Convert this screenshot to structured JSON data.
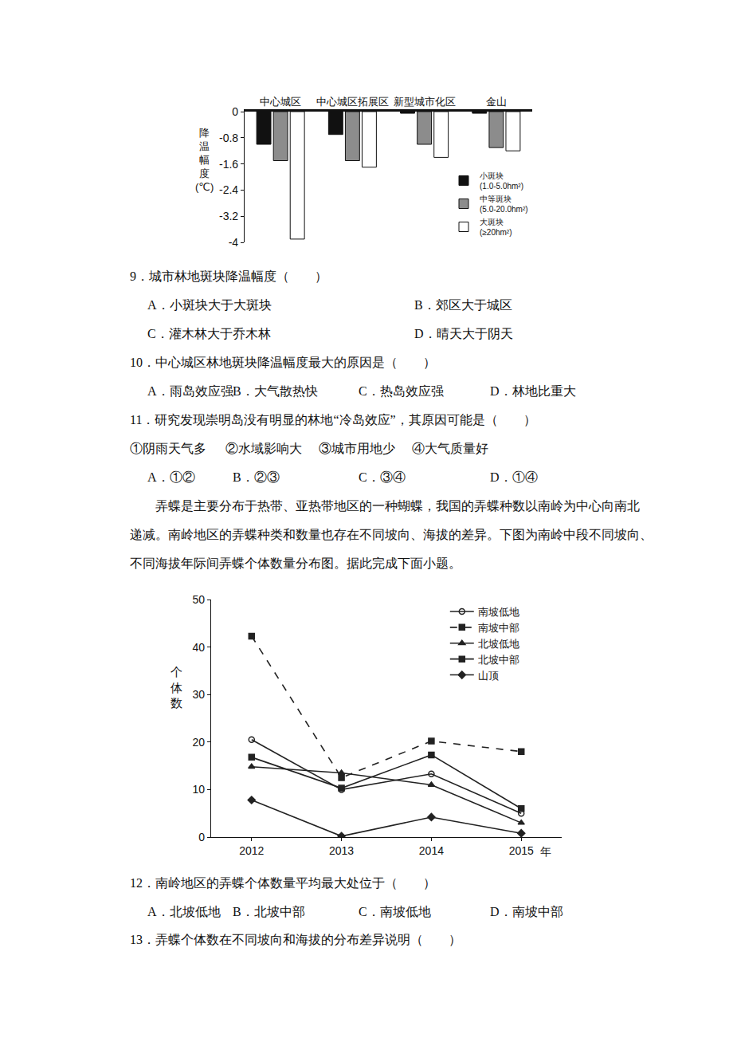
{
  "chart_data": [
    {
      "type": "bar",
      "categories": [
        "中心城区",
        "中心城区拓展区",
        "新型城市化区",
        "金山"
      ],
      "ylabel": "降温幅度(℃)",
      "ylim": [
        -4,
        0
      ],
      "yticks": [
        0,
        -0.8,
        -1.6,
        -2.4,
        -3.2,
        -4
      ],
      "grid": false,
      "legend": "lower right",
      "series": [
        {
          "name": "小斑块 (1.0-5.0hm²)",
          "color": "#111111",
          "values": [
            -1.0,
            -0.7,
            -0.05,
            -0.05
          ]
        },
        {
          "name": "中等斑块 (5.0-20.0hm²)",
          "color": "#8c8c8c",
          "values": [
            -1.5,
            -1.5,
            -1.0,
            -1.1
          ]
        },
        {
          "name": "大斑块 (≥20hm²)",
          "color": "#ffffff",
          "values": [
            -3.9,
            -1.7,
            -1.4,
            -1.2
          ]
        }
      ]
    },
    {
      "type": "line",
      "x": [
        2012,
        2013,
        2014,
        2015
      ],
      "xlim": [
        2011.55,
        2015.45
      ],
      "xticks": [
        2012,
        2013,
        2014,
        2015
      ],
      "xlabel": "年",
      "ylabel": "个体数",
      "ylim": [
        0,
        50
      ],
      "yticks": [
        0,
        10,
        20,
        30,
        40,
        50
      ],
      "grid": false,
      "legend": "upper right",
      "series": [
        {
          "name": "南坡低地",
          "color": "#222222",
          "marker": "circle-open",
          "line_style": "solid",
          "values": [
            20.5,
            10,
            13.3,
            5
          ]
        },
        {
          "name": "南坡中部",
          "color": "#222222",
          "marker": "square",
          "line_style": "dash",
          "values": [
            42.3,
            12.5,
            20.2,
            18
          ]
        },
        {
          "name": "北坡低地",
          "color": "#222222",
          "marker": "triangle-up",
          "line_style": "solid",
          "values": [
            14.8,
            13.5,
            11,
            3
          ]
        },
        {
          "name": "北坡中部",
          "color": "#222222",
          "marker": "square",
          "line_style": "solid",
          "values": [
            16.8,
            10.3,
            17.3,
            6
          ]
        },
        {
          "name": "山顶",
          "color": "#222222",
          "marker": "diamond",
          "line_style": "solid",
          "values": [
            7.8,
            0.2,
            4.2,
            0.8
          ]
        }
      ]
    }
  ],
  "document": {
    "questions_before": [
      {
        "stem": "9．城市林地斑块降温幅度（　　）",
        "options": [
          [
            "A．小斑块大于大斑块",
            "B．郊区大于城区"
          ],
          [
            "C．灌木林大于乔木林",
            "D．晴天大于阴天"
          ]
        ]
      },
      {
        "stem": "10．中心城区林地斑块降温幅度最大的原因是（　　）",
        "options": [
          [
            "A．雨岛效应强",
            "B．大气散热快",
            "C．热岛效应强",
            "D．林地比重大"
          ]
        ]
      },
      {
        "stem": "11．研究发现崇明岛没有明显的林地“冷岛效应”，其原因可能是（　　）",
        "statements": [
          "①阴雨天气多",
          "②水域影响大",
          "③城市用地少",
          "④大气质量好"
        ],
        "options": [
          [
            "A．①②",
            "B．②③",
            "C．③④",
            "D．①④"
          ]
        ]
      }
    ],
    "passage": [
      "弄蝶是主要分布于热带、亚热带地区的一种蝴蝶，我国的弄蝶种数以南岭为中心向南北",
      "递减。南岭地区的弄蝶种类和数量也存在不同坡向、海拔的差异。下图为南岭中段不同坡向、",
      "不同海拔年际间弄蝶个体数量分布图。据此完成下面小题。"
    ],
    "questions_after": [
      {
        "stem": "12．南岭地区的弄蝶个体数量平均最大处位于（　　）",
        "options": [
          [
            "A．北坡低地",
            "B．北坡中部",
            "C．南坡低地",
            "D．南坡中部"
          ]
        ]
      },
      {
        "stem": "13．弄蝶个体数在不同坡向和海拔的分布差异说明（　　）"
      }
    ]
  }
}
